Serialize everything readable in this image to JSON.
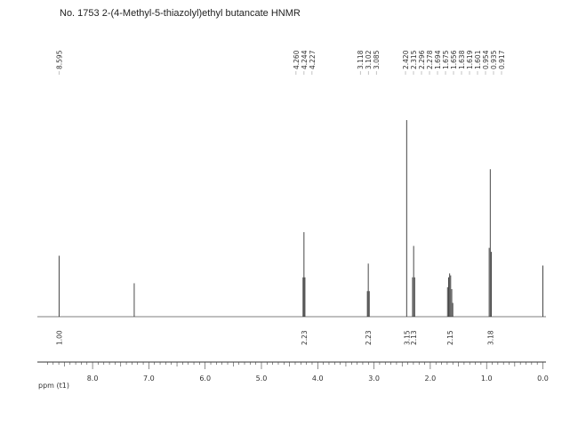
{
  "title": "No. 1753  2-(4-Methyl-5-thiazolyl)ethyl butancate HNMR",
  "chart_data": {
    "type": "line",
    "title": "No. 1753  2-(4-Methyl-5-thiazolyl)ethyl butancate HNMR",
    "xlabel": "ppm (t1)",
    "ylabel": "",
    "xlim": [
      9.0,
      -0.05
    ],
    "x_reversed": true,
    "x_ticks": [
      8.0,
      7.0,
      6.0,
      5.0,
      4.0,
      3.0,
      2.0,
      1.0,
      0.0
    ],
    "x_tick_labels": [
      "8.0",
      "7.0",
      "6.0",
      "5.0",
      "4.0",
      "3.0",
      "2.0",
      "1.0",
      "0.0"
    ],
    "grid": false,
    "peak_labels": [
      "8.595",
      "4.260",
      "4.244",
      "4.227",
      "3.118",
      "3.102",
      "3.085",
      "2.420",
      "2.315",
      "2.296",
      "2.278",
      "1.694",
      "1.675",
      "1.656",
      "1.638",
      "1.619",
      "1.601",
      "0.954",
      "0.935",
      "0.917"
    ],
    "peaks": [
      {
        "ppm": 8.595,
        "height": 0.31
      },
      {
        "ppm": 7.26,
        "height": 0.17
      },
      {
        "ppm": 4.26,
        "height": 0.2
      },
      {
        "ppm": 4.244,
        "height": 0.43
      },
      {
        "ppm": 4.227,
        "height": 0.2
      },
      {
        "ppm": 3.118,
        "height": 0.13
      },
      {
        "ppm": 3.102,
        "height": 0.27
      },
      {
        "ppm": 3.085,
        "height": 0.13
      },
      {
        "ppm": 2.42,
        "height": 1.0
      },
      {
        "ppm": 2.315,
        "height": 0.2
      },
      {
        "ppm": 2.296,
        "height": 0.36
      },
      {
        "ppm": 2.278,
        "height": 0.2
      },
      {
        "ppm": 1.694,
        "height": 0.15
      },
      {
        "ppm": 1.675,
        "height": 0.2
      },
      {
        "ppm": 1.656,
        "height": 0.22
      },
      {
        "ppm": 1.638,
        "height": 0.21
      },
      {
        "ppm": 1.619,
        "height": 0.14
      },
      {
        "ppm": 1.601,
        "height": 0.07
      },
      {
        "ppm": 0.954,
        "height": 0.35
      },
      {
        "ppm": 0.935,
        "height": 0.75
      },
      {
        "ppm": 0.917,
        "height": 0.33
      },
      {
        "ppm": 0.0,
        "height": 0.26
      }
    ],
    "integrals": [
      {
        "ppm": 8.595,
        "value": "1.00"
      },
      {
        "ppm": 4.244,
        "value": "2.23"
      },
      {
        "ppm": 3.102,
        "value": "2.23"
      },
      {
        "ppm": 2.42,
        "value": "3.15"
      },
      {
        "ppm": 2.296,
        "value": "2.13"
      },
      {
        "ppm": 1.65,
        "value": "2.15"
      },
      {
        "ppm": 0.935,
        "value": "3.18"
      }
    ]
  }
}
